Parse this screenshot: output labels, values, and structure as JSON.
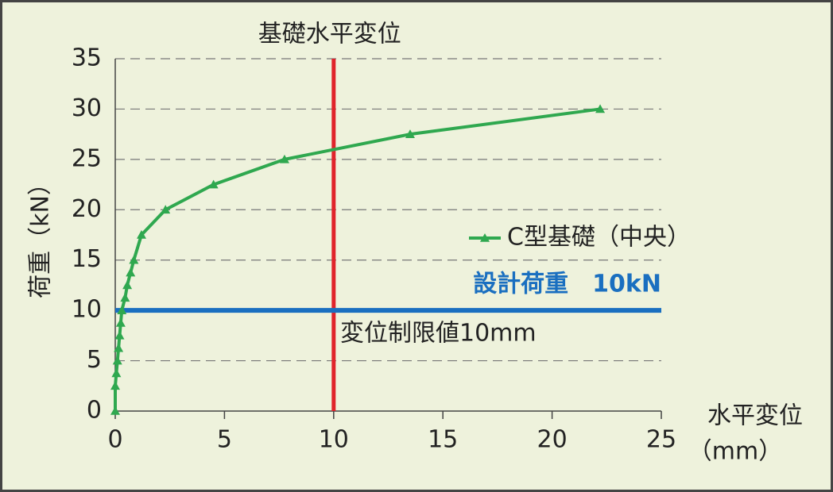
{
  "chart_data": {
    "type": "line",
    "series": [
      {
        "name": "C型基礎（中央）",
        "color": "#2fa84f",
        "x": [
          0,
          0,
          0.05,
          0.1,
          0.15,
          0.2,
          0.25,
          0.3,
          0.45,
          0.55,
          0.7,
          0.85,
          1.2,
          2.3,
          4.5,
          7.75,
          13.5,
          22.2
        ],
        "values": [
          0,
          2.5,
          3.75,
          5,
          6.25,
          7.5,
          8.75,
          10,
          11.25,
          12.5,
          13.75,
          15,
          17.5,
          20,
          22.5,
          25,
          27.5,
          30
        ]
      }
    ],
    "xlim": [
      0,
      25
    ],
    "xticks": [
      0,
      5,
      10,
      15,
      20,
      25
    ],
    "ylim": [
      0,
      35
    ],
    "yticks": [
      0,
      5,
      10,
      15,
      20,
      25,
      30,
      35
    ],
    "ylabel": "荷重（kN）",
    "xlabel": [
      "水平変位",
      "（mm）"
    ],
    "grid": true,
    "reference_lines": [
      {
        "axis": "x",
        "value": 10,
        "label": "基礎水平変位",
        "color": "#e0242b"
      },
      {
        "axis": "y",
        "value": 10,
        "label": "設計荷重　10kN",
        "color": "#1a6fc0"
      }
    ],
    "annotations": [
      "変位制限値10mm"
    ]
  }
}
